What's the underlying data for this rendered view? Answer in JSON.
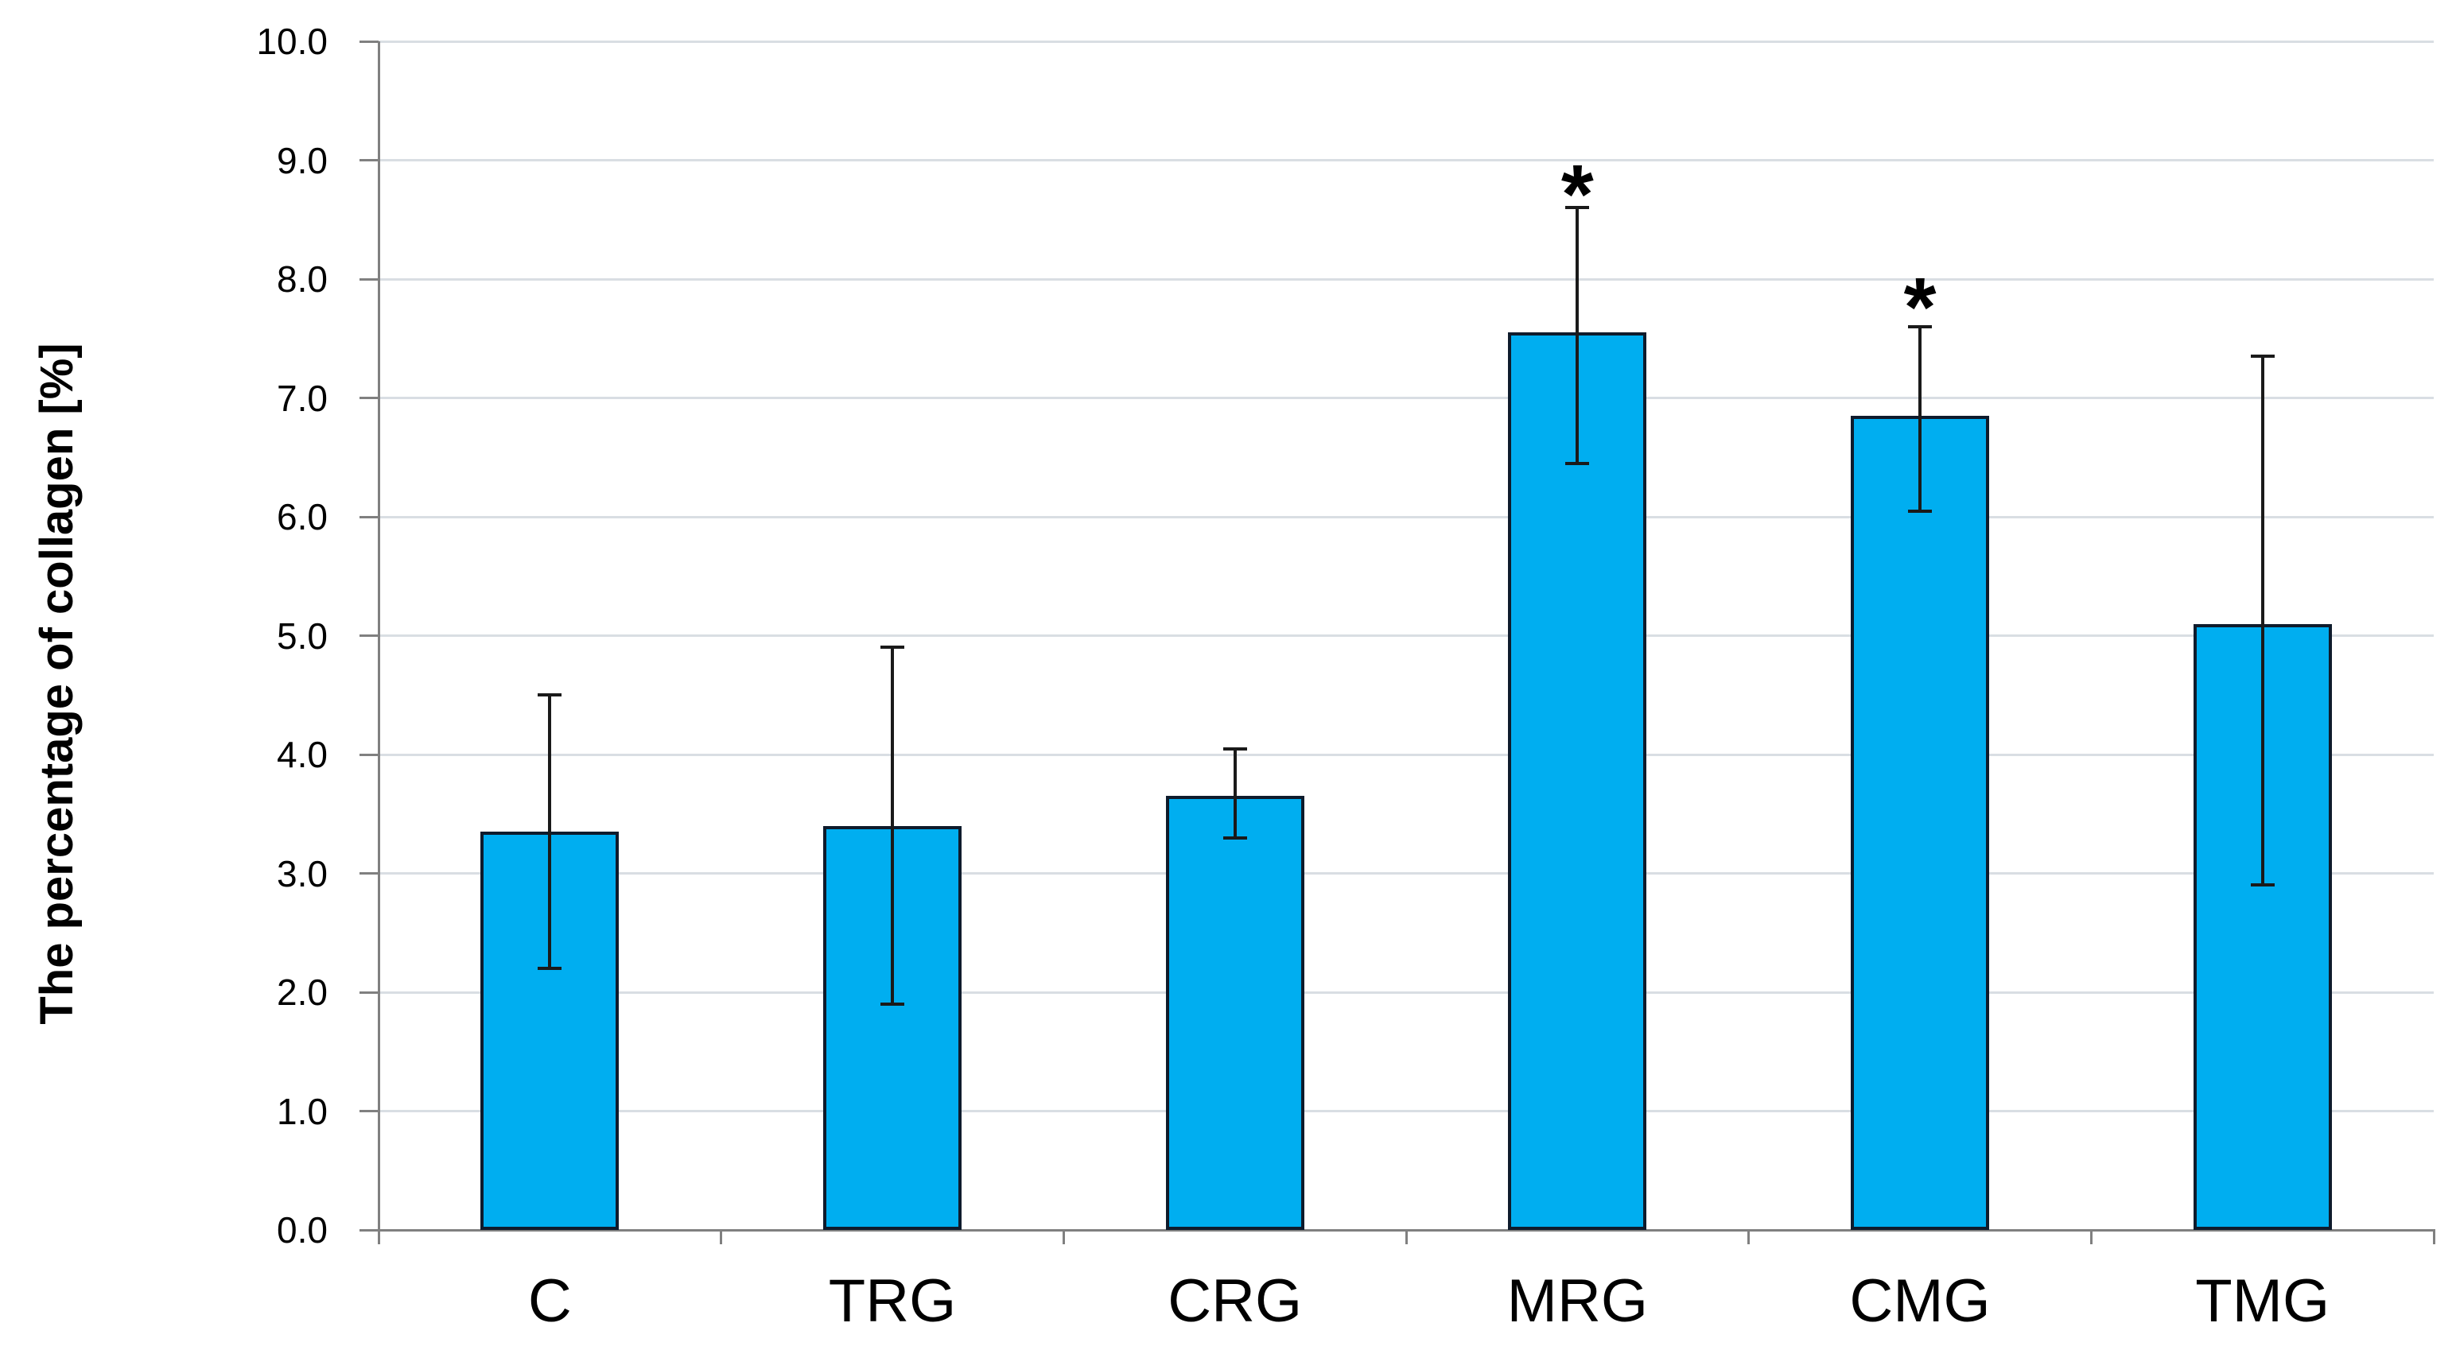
{
  "chart_data": {
    "type": "bar",
    "title": "",
    "ylabel": "The percentage of collagen [%]",
    "xlabel": "",
    "ylim": [
      0,
      10
    ],
    "ytick_step": 1.0,
    "ytick_labels": [
      "0.0",
      "1.0",
      "2.0",
      "3.0",
      "4.0",
      "5.0",
      "6.0",
      "7.0",
      "8.0",
      "9.0",
      "10.0"
    ],
    "grid": "horizontal-light",
    "legend": "none",
    "categories": [
      "C",
      "TRG",
      "CRG",
      "MRG",
      "CMG",
      "TMG"
    ],
    "values": [
      3.35,
      3.4,
      3.65,
      7.55,
      6.85,
      5.1
    ],
    "error_low": [
      2.2,
      1.9,
      3.3,
      6.45,
      6.05,
      2.9
    ],
    "error_high": [
      4.5,
      4.9,
      4.05,
      8.6,
      7.6,
      7.35
    ],
    "significance_markers": [
      {
        "category": "MRG",
        "marker": "*",
        "y": 8.85
      },
      {
        "category": "CMG",
        "marker": "*",
        "y": 7.9
      }
    ],
    "colors": {
      "bar_fill": "#00AEF0",
      "bar_border": "#0E1B2C",
      "error_bar": "#1A1A1A",
      "gridline": "#D9DEE3",
      "axis": "#808080",
      "text": "#000000"
    }
  }
}
